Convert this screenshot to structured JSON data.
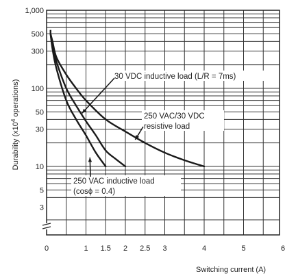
{
  "chart_data": {
    "type": "line",
    "xlabel": "Switching current (A)",
    "ylabel_pre": "Durability (x10",
    "ylabel_sup": "4",
    "ylabel_post": " operations)",
    "y_scale": "log",
    "xlim": [
      0,
      6
    ],
    "ylim": [
      1,
      1000
    ],
    "x_tick_labels": [
      {
        "x": 0,
        "label": "0"
      },
      {
        "x": 1,
        "label": "1"
      },
      {
        "x": 1.5,
        "label": "1.5"
      },
      {
        "x": 2,
        "label": "2"
      },
      {
        "x": 2.5,
        "label": "2.5"
      },
      {
        "x": 3,
        "label": "3"
      },
      {
        "x": 4,
        "label": "4"
      },
      {
        "x": 5,
        "label": "5"
      },
      {
        "x": 6,
        "label": "6"
      }
    ],
    "y_tick_labels": [
      {
        "y": 1000,
        "label": "1,000"
      },
      {
        "y": 500,
        "label": "500"
      },
      {
        "y": 300,
        "label": "300"
      },
      {
        "y": 100,
        "label": "100"
      },
      {
        "y": 50,
        "label": "50"
      },
      {
        "y": 30,
        "label": "30"
      },
      {
        "y": 10,
        "label": "10"
      },
      {
        "y": 5,
        "label": "5"
      },
      {
        "y": 3,
        "label": "3"
      }
    ],
    "grid": true,
    "axis_break": true,
    "series": [
      {
        "name": "30 VDC inductive load (L/R = 7ms)",
        "points": [
          [
            0.1,
            500
          ],
          [
            0.15,
            350
          ],
          [
            0.25,
            220
          ],
          [
            0.5,
            100
          ],
          [
            0.75,
            60
          ],
          [
            1,
            38
          ],
          [
            1.25,
            25
          ],
          [
            1.5,
            16
          ],
          [
            1.75,
            12.5
          ],
          [
            2,
            10
          ]
        ]
      },
      {
        "name": "250 VAC/30 VDC resistive load",
        "points": [
          [
            0.1,
            500
          ],
          [
            0.15,
            400
          ],
          [
            0.25,
            250
          ],
          [
            0.5,
            150
          ],
          [
            0.75,
            100
          ],
          [
            1,
            70
          ],
          [
            1.5,
            40
          ],
          [
            2,
            28
          ],
          [
            2.5,
            20
          ],
          [
            3,
            15
          ],
          [
            3.5,
            12
          ],
          [
            4,
            10
          ]
        ]
      },
      {
        "name": "250 VAC inductive load (cosϕ = 0.4)",
        "points": [
          [
            0.1,
            500
          ],
          [
            0.15,
            320
          ],
          [
            0.25,
            180
          ],
          [
            0.5,
            70
          ],
          [
            0.75,
            40
          ],
          [
            1,
            25
          ],
          [
            1.25,
            15
          ],
          [
            1.5,
            10
          ]
        ]
      }
    ],
    "annotations": [
      {
        "id": "a1",
        "lines": [
          "30 VDC inductive load (L/R = 7ms)"
        ],
        "arrow_to": [
          0.9,
          48
        ]
      },
      {
        "id": "a2",
        "lines": [
          "250 VAC/30 VDC",
          "resistive load"
        ],
        "arrow_to": [
          2.25,
          22
        ]
      },
      {
        "id": "a3",
        "lines": [
          "250 VAC inductive load",
          "(cosϕ = 0.4)"
        ],
        "arrow_to": [
          1.1,
          13
        ]
      }
    ]
  }
}
